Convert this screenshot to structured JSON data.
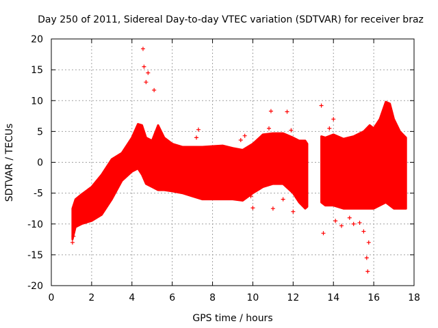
{
  "chart_data": {
    "type": "scatter",
    "title": "Day 250 of 2011, Sidereal Day-to-day VTEC variation (SDTVAR) for receiver braz",
    "xlabel": "GPS time / hours",
    "ylabel": "SDTVAR / TECUs",
    "xlim": [
      0,
      18
    ],
    "ylim": [
      -20,
      20
    ],
    "xticks": [
      0,
      2,
      4,
      6,
      8,
      10,
      12,
      14,
      16,
      18
    ],
    "yticks": [
      -20,
      -15,
      -10,
      -5,
      0,
      5,
      10,
      15,
      20
    ],
    "xtick_labels": [
      "0",
      "2",
      "4",
      "6",
      "8",
      "10",
      "12",
      "14",
      "16",
      "18"
    ],
    "ytick_labels": [
      "-20",
      "-15",
      "-10",
      "-5",
      "0",
      "5",
      "10",
      "15",
      "20"
    ],
    "grid": true,
    "marker": "+",
    "color": "#ff0000",
    "series": [
      {
        "name": "SDTVAR",
        "envelope_x": [
          1.05,
          1.2,
          1.5,
          2.0,
          2.5,
          3.0,
          3.5,
          4.0,
          4.3,
          4.5,
          4.7,
          5.0,
          5.3,
          5.6,
          6.0,
          6.5,
          7.0,
          7.5,
          8.0,
          8.5,
          9.0,
          9.5,
          10.0,
          10.5,
          11.0,
          11.5,
          12.0,
          12.3,
          12.6,
          12.7
        ],
        "envelope_upper": [
          -7.5,
          -6.0,
          -5.2,
          -4.0,
          -2.0,
          0.5,
          1.5,
          4.0,
          6.2,
          6.0,
          4.0,
          3.5,
          6.0,
          4.0,
          3.0,
          2.5,
          2.5,
          2.5,
          2.6,
          2.7,
          2.3,
          2.0,
          3.0,
          4.5,
          4.7,
          4.7,
          4.0,
          3.5,
          3.5,
          3.0
        ],
        "envelope_lower": [
          -12.5,
          -10.5,
          -10.0,
          -9.5,
          -8.5,
          -6.0,
          -3.0,
          -1.5,
          -1.0,
          -2.0,
          -3.5,
          -4.0,
          -4.5,
          -4.5,
          -4.7,
          -5.0,
          -5.5,
          -6.0,
          -6.0,
          -6.0,
          -6.0,
          -6.2,
          -5.0,
          -4.0,
          -3.5,
          -3.5,
          -5.0,
          -6.5,
          -7.5,
          -7.2
        ],
        "envelope2_x": [
          13.4,
          13.6,
          14.0,
          14.5,
          15.0,
          15.5,
          15.8,
          16.0,
          16.3,
          16.6,
          16.8,
          17.0,
          17.3,
          17.6
        ],
        "envelope2_upper": [
          4.2,
          4.0,
          4.5,
          3.8,
          4.2,
          5.0,
          6.0,
          5.5,
          7.0,
          9.8,
          9.5,
          7.0,
          5.0,
          4.0
        ],
        "envelope2_lower": [
          -6.5,
          -7.0,
          -7.0,
          -7.5,
          -7.5,
          -7.5,
          -7.5,
          -7.5,
          -7.0,
          -6.5,
          -7.0,
          -7.5,
          -7.5,
          -7.5
        ],
        "outliers": [
          {
            "x": 4.55,
            "y": 18.4
          },
          {
            "x": 4.6,
            "y": 15.5
          },
          {
            "x": 4.7,
            "y": 13.0
          },
          {
            "x": 4.8,
            "y": 14.5
          },
          {
            "x": 5.1,
            "y": 11.7
          },
          {
            "x": 7.3,
            "y": 5.3
          },
          {
            "x": 7.2,
            "y": 4.0
          },
          {
            "x": 9.4,
            "y": 3.6
          },
          {
            "x": 9.6,
            "y": 4.3
          },
          {
            "x": 9.9,
            "y": -5.5
          },
          {
            "x": 10.0,
            "y": -7.4
          },
          {
            "x": 10.8,
            "y": 5.5
          },
          {
            "x": 10.9,
            "y": 8.3
          },
          {
            "x": 11.0,
            "y": -7.5
          },
          {
            "x": 11.5,
            "y": -6.0
          },
          {
            "x": 11.7,
            "y": 8.2
          },
          {
            "x": 11.9,
            "y": 5.2
          },
          {
            "x": 12.0,
            "y": -8.0
          },
          {
            "x": 13.4,
            "y": 9.2
          },
          {
            "x": 13.5,
            "y": -11.5
          },
          {
            "x": 13.8,
            "y": 5.5
          },
          {
            "x": 14.0,
            "y": 7.0
          },
          {
            "x": 14.1,
            "y": -9.5
          },
          {
            "x": 14.4,
            "y": -10.3
          },
          {
            "x": 14.8,
            "y": -9.0
          },
          {
            "x": 15.0,
            "y": -10.0
          },
          {
            "x": 15.3,
            "y": -9.8
          },
          {
            "x": 15.5,
            "y": -11.2
          },
          {
            "x": 15.65,
            "y": -15.5
          },
          {
            "x": 15.7,
            "y": -17.7
          },
          {
            "x": 15.75,
            "y": -13.0
          },
          {
            "x": 1.05,
            "y": -13.0
          },
          {
            "x": 1.1,
            "y": -12.0
          }
        ]
      }
    ]
  }
}
